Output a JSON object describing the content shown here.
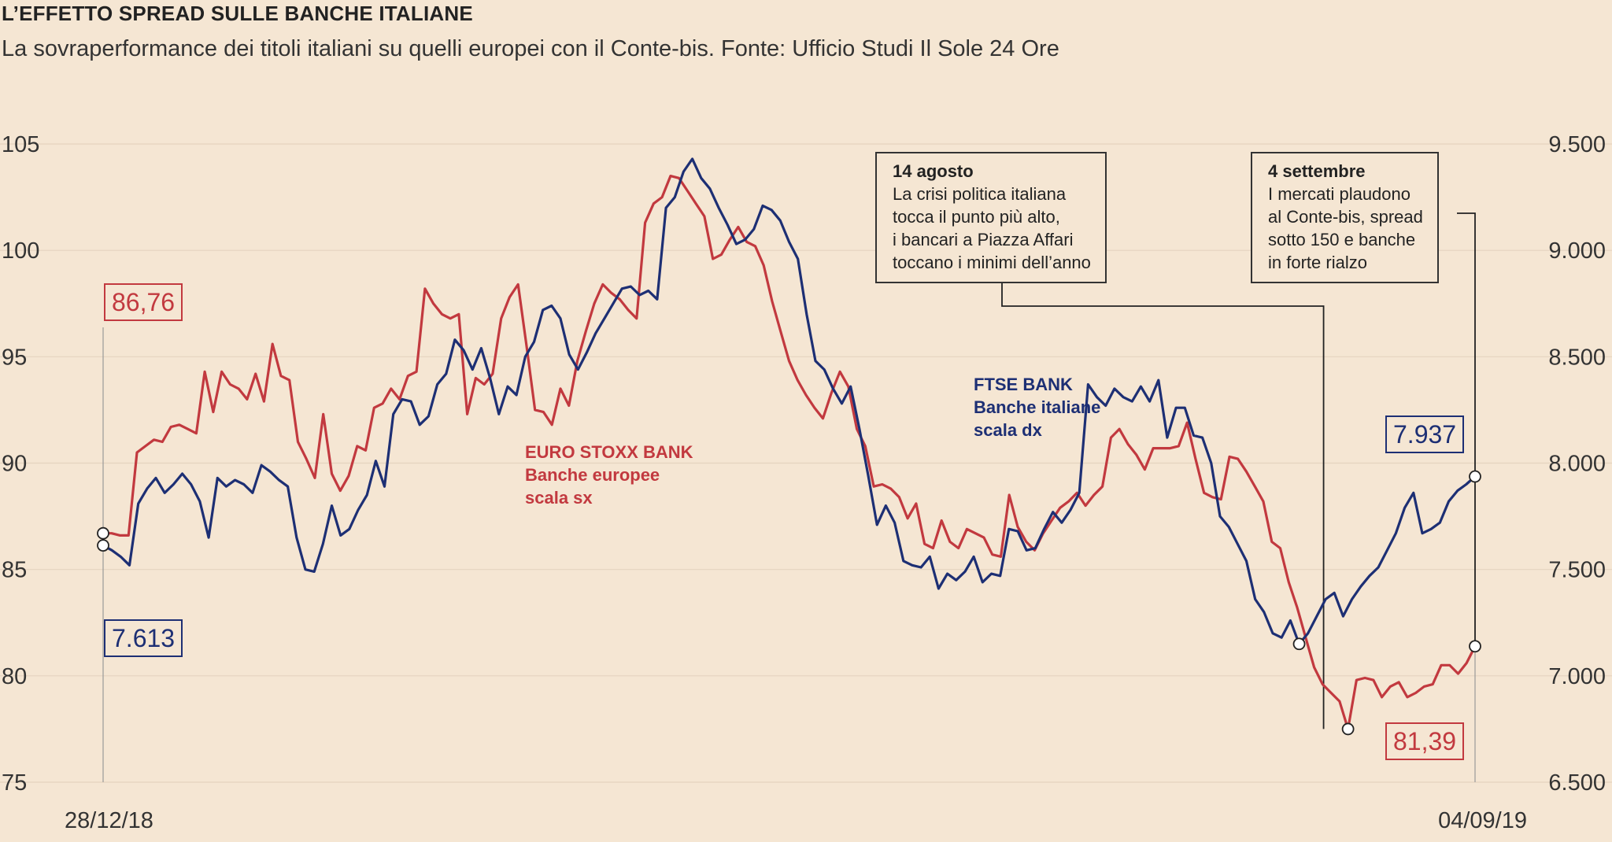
{
  "title": "L’EFFETTO SPREAD SULLE BANCHE ITALIANE",
  "subtitle": "La sovraperformance dei titoli italiani su quelli europei con il Conte-bis. Fonte: Ufficio Studi Il Sole 24 Ore",
  "colors": {
    "red": "#c2393f",
    "blue": "#1d2f74",
    "background": "#f5e6d3"
  },
  "chart_data": {
    "type": "line",
    "x": {
      "start": "28/12/18",
      "end": "04/09/19",
      "points": 201
    },
    "y_left": {
      "ticks": [
        "105",
        "100",
        "95",
        "90",
        "85",
        "80",
        "75"
      ],
      "range": [
        75,
        105
      ]
    },
    "y_right": {
      "ticks": [
        "9.500",
        "9.000",
        "8.500",
        "8.000",
        "7.500",
        "7.000",
        "6.500"
      ],
      "range": [
        6500,
        9500
      ]
    },
    "series": [
      {
        "name": "EURO STOXX BANK",
        "label_lines": [
          "EURO STOXX BANK",
          "Banche europee",
          "scala sx"
        ],
        "axis": "left",
        "color": "#c2393f",
        "start_label": "86,76",
        "end_label": "81,39",
        "values": [
          86.7,
          86.7,
          86.6,
          86.6,
          90.5,
          90.8,
          91.1,
          91.0,
          91.7,
          91.8,
          91.6,
          91.4,
          94.3,
          92.4,
          94.3,
          93.7,
          93.5,
          93.0,
          94.2,
          92.9,
          95.6,
          94.1,
          93.9,
          91.0,
          90.2,
          89.3,
          92.3,
          89.5,
          88.7,
          89.4,
          90.8,
          90.6,
          92.6,
          92.8,
          93.5,
          93.0,
          94.1,
          94.3,
          98.2,
          97.5,
          97.0,
          96.8,
          97.0,
          92.3,
          94.0,
          93.7,
          94.2,
          96.8,
          97.8,
          98.4,
          95.5,
          92.5,
          92.4,
          91.8,
          93.5,
          92.7,
          94.8,
          96.2,
          97.5,
          98.4,
          98.0,
          97.7,
          97.2,
          96.8,
          101.3,
          102.2,
          102.5,
          103.5,
          103.4,
          102.8,
          102.2,
          101.6,
          99.6,
          99.8,
          100.5,
          101.1,
          100.4,
          100.2,
          99.3,
          97.6,
          96.2,
          94.8,
          93.9,
          93.2,
          92.6,
          92.1,
          93.3,
          94.3,
          93.6,
          91.6,
          90.8,
          88.9,
          89.0,
          88.8,
          88.4,
          87.4,
          88.1,
          86.2,
          86.0,
          87.3,
          86.3,
          86.0,
          86.9,
          86.7,
          86.5,
          85.7,
          85.6,
          88.5,
          87.0,
          86.3,
          85.9,
          86.7,
          87.3,
          87.9,
          88.2,
          88.6,
          88.0,
          88.5,
          88.9,
          91.2,
          91.6,
          90.9,
          90.4,
          89.7,
          90.7,
          90.7,
          90.7,
          90.8,
          91.9,
          90.2,
          88.6,
          88.4,
          88.3,
          90.3,
          90.2,
          89.6,
          88.9,
          88.2,
          86.3,
          86.0,
          84.4,
          83.2,
          81.8,
          80.4,
          79.6,
          79.2,
          78.8,
          77.5,
          79.8,
          79.9,
          79.8,
          79.0,
          79.5,
          79.7,
          79.0,
          79.2,
          79.5,
          79.6,
          80.5,
          80.5,
          80.1,
          80.6,
          81.39
        ],
        "x_start": 0,
        "x_end": 1
      },
      {
        "name": "FTSE BANK",
        "label_lines": [
          "FTSE BANK",
          "Banche italiane",
          "scala dx"
        ],
        "axis": "right",
        "color": "#1d2f74",
        "start_label": "7.613",
        "end_label": "7.937",
        "values": [
          7613,
          7590,
          7560,
          7520,
          7810,
          7880,
          7930,
          7860,
          7900,
          7950,
          7900,
          7820,
          7650,
          7930,
          7890,
          7920,
          7900,
          7860,
          7990,
          7960,
          7920,
          7890,
          7650,
          7500,
          7490,
          7620,
          7800,
          7660,
          7690,
          7780,
          7850,
          8010,
          7890,
          8230,
          8300,
          8290,
          8180,
          8220,
          8370,
          8420,
          8580,
          8530,
          8440,
          8540,
          8400,
          8230,
          8360,
          8320,
          8500,
          8570,
          8720,
          8740,
          8680,
          8510,
          8440,
          8520,
          8610,
          8680,
          8750,
          8820,
          8830,
          8790,
          8810,
          8770,
          9200,
          9250,
          9370,
          9430,
          9340,
          9290,
          9200,
          9120,
          9030,
          9050,
          9100,
          9210,
          9190,
          9140,
          9040,
          8960,
          8700,
          8480,
          8440,
          8350,
          8280,
          8360,
          8160,
          7940,
          7710,
          7800,
          7720,
          7540,
          7520,
          7510,
          7560,
          7410,
          7480,
          7450,
          7490,
          7560,
          7440,
          7480,
          7470,
          7690,
          7680,
          7590,
          7600,
          7690,
          7770,
          7720,
          7780,
          7860,
          8370,
          8310,
          8270,
          8350,
          8310,
          8290,
          8360,
          8290,
          8390,
          8120,
          8260,
          8260,
          8130,
          8120,
          8000,
          7750,
          7700,
          7620,
          7540,
          7360,
          7300,
          7200,
          7180,
          7260,
          7150,
          7200,
          7280,
          7360,
          7390,
          7280,
          7360,
          7420,
          7470,
          7510,
          7590,
          7670,
          7790,
          7860,
          7670,
          7690,
          7720,
          7820,
          7870,
          7900,
          7937
        ],
        "x_start": 0,
        "x_end": 1
      }
    ]
  },
  "annotations": [
    {
      "title": "14 agosto",
      "lines": [
        "La crisi politica italiana",
        "tocca il punto più alto,",
        "i bancari a Piazza Affari",
        "toccano i minimi dell’anno"
      ]
    },
    {
      "title": "4 settembre",
      "lines": [
        "I mercati plaudono",
        "al Conte-bis, spread",
        "sotto 150 e banche",
        "in forte rialzo"
      ]
    }
  ]
}
